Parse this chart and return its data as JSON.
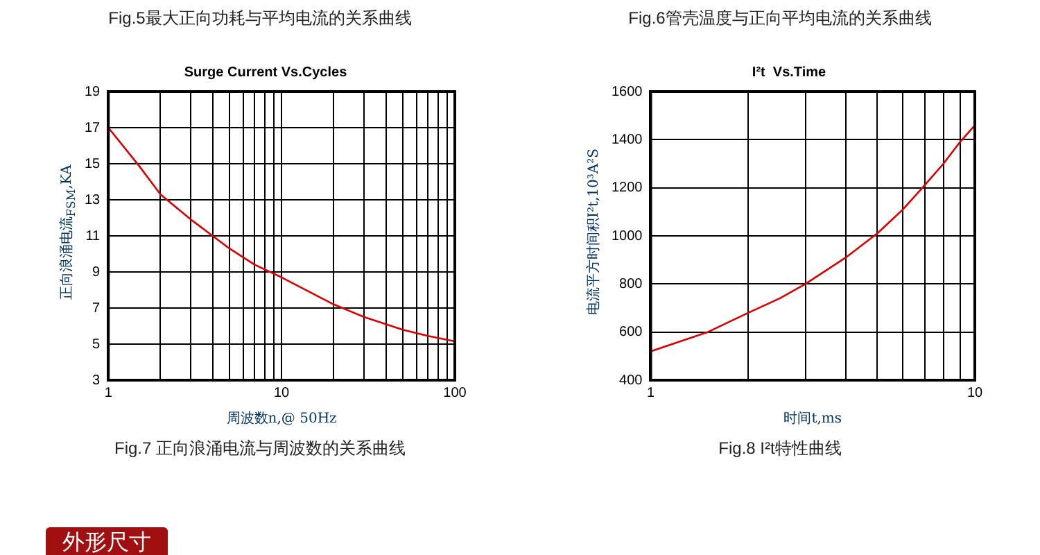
{
  "chart_data": [
    {
      "type": "line",
      "title": "Surge Current Vs.Cycles",
      "xlabel": "周波数n,@ 50Hz",
      "ylabel": "正向浪涌电流$_{FSM}$,KA",
      "annotations": [
        "Fig.5最大正向功耗与平均电流的关系曲线",
        "Fig.7 正向浪涌电流与周波数的关系曲线",
        "外形尺寸"
      ],
      "x": [
        1,
        1.5,
        2,
        3,
        4,
        5,
        7,
        10,
        20,
        30,
        50,
        70,
        100
      ],
      "series": [
        {
          "color": "#dd0000",
          "values": [
            17,
            14.9,
            13.3,
            11.9,
            11.0,
            10.3,
            9.4,
            8.7,
            7.2,
            6.5,
            5.8,
            5.45,
            5.15
          ]
        }
      ],
      "log": "x",
      "xlim": [
        1,
        100
      ],
      "xticks": [
        1,
        {
          "value": 2,
          "label": null
        },
        {
          "value": 3,
          "label": null
        },
        {
          "value": 4,
          "label": null
        },
        {
          "value": 5,
          "label": null
        },
        {
          "value": 6,
          "label": null
        },
        {
          "value": 7,
          "label": null
        },
        {
          "value": 8,
          "label": null
        },
        {
          "value": 9,
          "label": null
        },
        10,
        {
          "value": 20,
          "label": null
        },
        {
          "value": 30,
          "label": null
        },
        {
          "value": 40,
          "label": null
        },
        {
          "value": 50,
          "label": null
        },
        {
          "value": 60,
          "label": null
        },
        {
          "value": 70,
          "label": null
        },
        {
          "value": 80,
          "label": null
        },
        {
          "value": 90,
          "label": null
        },
        100
      ],
      "ylim": [
        3,
        19
      ],
      "yticks": [
        3,
        5,
        7,
        9,
        11,
        13,
        15,
        17,
        19
      ],
      "grid": true,
      "marker": "none",
      "line_style": "solid"
    },
    {
      "type": "line",
      "title": "I²t  Vs.Time",
      "xlabel": "时间t,ms",
      "ylabel": "电流平方时间积I²t,10³A²S",
      "annotations": [
        "Fig.6管壳温度与正向平均电流的关系曲线",
        "Fig.8 I²t特性曲线"
      ],
      "x": [
        1,
        1.5,
        2,
        2.5,
        3,
        4,
        5,
        6,
        7,
        8,
        9,
        10
      ],
      "series": [
        {
          "color": "#dd0000",
          "values": [
            520,
            600,
            680,
            740,
            800,
            910,
            1010,
            1110,
            1210,
            1300,
            1390,
            1460
          ]
        }
      ],
      "log": "x",
      "xlim": [
        1,
        10
      ],
      "xticks": [
        1,
        {
          "value": 2,
          "label": null
        },
        {
          "value": 3,
          "label": null
        },
        {
          "value": 4,
          "label": null
        },
        {
          "value": 5,
          "label": null
        },
        {
          "value": 6,
          "label": null
        },
        {
          "value": 7,
          "label": null
        },
        {
          "value": 8,
          "label": null
        },
        {
          "value": 9,
          "label": null
        },
        10
      ],
      "ylim": [
        400,
        1600
      ],
      "yticks": [
        400,
        600,
        800,
        1000,
        1200,
        1400,
        1600
      ],
      "grid": true,
      "marker": "none",
      "line_style": "solid"
    }
  ]
}
